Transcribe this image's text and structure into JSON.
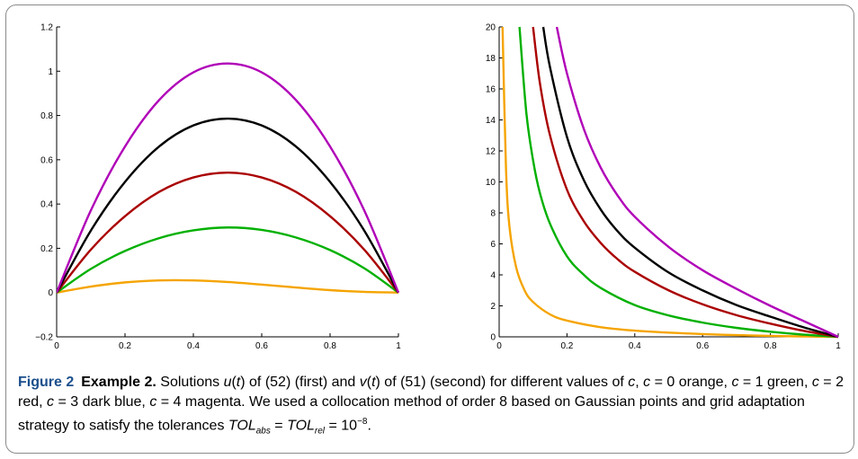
{
  "chart_data": [
    {
      "type": "line",
      "title": "",
      "xlabel": "",
      "ylabel": "",
      "xlim": [
        0,
        1
      ],
      "ylim": [
        -0.2,
        1.2
      ],
      "x_ticks": [
        "0",
        "0.2",
        "0.4",
        "0.6",
        "0.8",
        "1"
      ],
      "y_ticks": [
        "−0.2",
        "0",
        "0.2",
        "0.4",
        "0.6",
        "0.8",
        "1",
        "1.2"
      ],
      "series": [
        {
          "color": "#f5a400",
          "x": [
            0,
            0.1,
            0.2,
            0.3,
            0.4,
            0.5,
            0.6,
            0.7,
            0.8,
            0.9,
            1
          ],
          "values": [
            0,
            0.027,
            0.046,
            0.055,
            0.055,
            0.048,
            0.036,
            0.023,
            0.011,
            0.003,
            0
          ]
        },
        {
          "color": "#00b000",
          "x": [
            0,
            0.1,
            0.2,
            0.3,
            0.4,
            0.5,
            0.6,
            0.7,
            0.8,
            0.9,
            1
          ],
          "values": [
            0,
            0.107,
            0.188,
            0.246,
            0.281,
            0.294,
            0.283,
            0.249,
            0.192,
            0.11,
            0
          ]
        },
        {
          "color": "#aa0000",
          "x": [
            0,
            0.1,
            0.2,
            0.3,
            0.4,
            0.5,
            0.6,
            0.7,
            0.8,
            0.9,
            1
          ],
          "values": [
            0,
            0.194,
            0.345,
            0.455,
            0.52,
            0.542,
            0.52,
            0.455,
            0.345,
            0.194,
            0
          ]
        },
        {
          "color": "#000000",
          "x": [
            0,
            0.1,
            0.2,
            0.3,
            0.4,
            0.5,
            0.6,
            0.7,
            0.8,
            0.9,
            1
          ],
          "values": [
            0,
            0.28,
            0.5,
            0.66,
            0.755,
            0.786,
            0.755,
            0.66,
            0.5,
            0.28,
            0
          ]
        },
        {
          "color": "#b000b8",
          "x": [
            0,
            0.1,
            0.2,
            0.3,
            0.4,
            0.5,
            0.6,
            0.7,
            0.8,
            0.9,
            1
          ],
          "values": [
            0,
            0.371,
            0.66,
            0.87,
            0.995,
            1.035,
            0.995,
            0.87,
            0.66,
            0.371,
            0
          ]
        }
      ]
    },
    {
      "type": "line",
      "title": "",
      "xlabel": "",
      "ylabel": "",
      "xlim": [
        0,
        1
      ],
      "ylim": [
        0,
        20
      ],
      "x_ticks": [
        "0",
        "0.2",
        "0.4",
        "0.6",
        "0.8",
        "1"
      ],
      "y_ticks": [
        "0",
        "2",
        "4",
        "6",
        "8",
        "10",
        "12",
        "14",
        "16",
        "18",
        "20"
      ],
      "series": [
        {
          "color": "#f5a400",
          "x": [
            0.01,
            0.02,
            0.03,
            0.05,
            0.075,
            0.1,
            0.15,
            0.2,
            0.3,
            0.4,
            0.5,
            0.6,
            0.7,
            0.8,
            0.9,
            1
          ],
          "values": [
            20,
            11,
            7.2,
            4.5,
            3,
            2.25,
            1.45,
            1.05,
            0.62,
            0.4,
            0.27,
            0.18,
            0.11,
            0.06,
            0.025,
            0
          ]
        },
        {
          "color": "#00b000",
          "x": [
            0.06,
            0.08,
            0.1,
            0.12,
            0.15,
            0.2,
            0.25,
            0.3,
            0.4,
            0.5,
            0.6,
            0.7,
            0.8,
            0.9,
            1
          ],
          "values": [
            20,
            14.5,
            11.4,
            9.3,
            7.3,
            5.2,
            4,
            3.15,
            2.05,
            1.38,
            0.92,
            0.58,
            0.33,
            0.14,
            0
          ]
        },
        {
          "color": "#aa0000",
          "x": [
            0.1,
            0.12,
            0.15,
            0.2,
            0.25,
            0.3,
            0.35,
            0.4,
            0.5,
            0.6,
            0.7,
            0.8,
            0.9,
            1
          ],
          "values": [
            20,
            16.4,
            13,
            9.5,
            7.45,
            6.05,
            5,
            4.2,
            3,
            2.1,
            1.4,
            0.85,
            0.38,
            0
          ]
        },
        {
          "color": "#000000",
          "x": [
            0.13,
            0.15,
            0.2,
            0.25,
            0.3,
            0.35,
            0.4,
            0.5,
            0.6,
            0.7,
            0.8,
            0.9,
            1
          ],
          "values": [
            20,
            17.4,
            12.9,
            10.1,
            8.2,
            6.8,
            5.75,
            4.15,
            3,
            2.05,
            1.3,
            0.6,
            0
          ]
        },
        {
          "color": "#b000b8",
          "x": [
            0.17,
            0.2,
            0.25,
            0.3,
            0.35,
            0.4,
            0.5,
            0.6,
            0.7,
            0.8,
            0.9,
            1
          ],
          "values": [
            20,
            17,
            13.4,
            10.9,
            9.1,
            7.75,
            5.8,
            4.3,
            3.1,
            2,
            1,
            0
          ]
        }
      ]
    }
  ],
  "caption": {
    "figure_label": "Figure 2",
    "example_label": "Example 2.",
    "text_1": " Solutions ",
    "u_fn": "u",
    "lparen_1": "(",
    "t_1": "t",
    "text_2": ") of (52) (first) and ",
    "v_fn": "v",
    "lparen_2": "(",
    "t_2": "t",
    "text_3": ") of (51) (second) for different values of ",
    "c_1": "c",
    "text_4": ", ",
    "c_2": "c",
    "text_5": " = 0 orange, ",
    "c_3": "c",
    "text_6": " = 1 green, ",
    "c_4": "c",
    "text_7": " = 2 red, ",
    "c_5": "c",
    "text_8": " = 3 dark blue, ",
    "c_6": "c",
    "text_9": " = 4 magenta. We used a collocation method of order 8 based on Gaussian points and grid adaptation strategy to satisfy the tolerances ",
    "tol_1": "TOL",
    "tol_1_sub": "abs",
    "text_10": " = ",
    "tol_2": "TOL",
    "tol_2_sub": "rel",
    "text_11": " = 10",
    "exponent": "−8",
    "text_12": "."
  }
}
